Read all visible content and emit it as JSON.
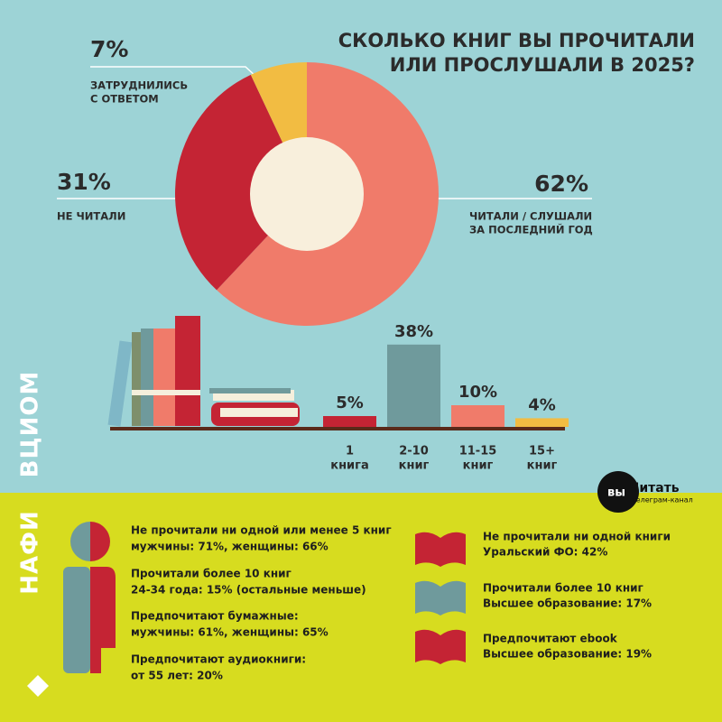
{
  "chart_data": [
    {
      "type": "pie",
      "donut": true,
      "title": [
        "СКОЛЬКО КНИГ ВЫ ПРОЧИТАЛИ",
        "ИЛИ ПРОСЛУШАЛИ В 2025?"
      ],
      "categories": [
        [
          "ЧИТАЛИ / СЛУШАЛИ",
          "ЗА ПОСЛЕДНИЙ ГОД"
        ],
        [
          "НЕ ЧИТАЛИ"
        ],
        [
          "ЗАТРУДНИЛИСЬ",
          "С ОТВЕТОМ"
        ]
      ],
      "values": [
        62,
        31,
        7
      ],
      "value_labels": [
        "62%",
        "31%",
        "7%"
      ],
      "colors": [
        "#f07b6a",
        "#c42434",
        "#f2bc42"
      ]
    },
    {
      "type": "bar",
      "categories": [
        [
          "1",
          "книга"
        ],
        [
          "2-10",
          "книг"
        ],
        [
          "11-15",
          "книг"
        ],
        [
          "15+",
          "книг"
        ]
      ],
      "values": [
        5,
        38,
        10,
        4
      ],
      "value_labels": [
        "5%",
        "38%",
        "10%",
        "4%"
      ],
      "colors": [
        "#c42434",
        "#6f9a9c",
        "#f07b6a",
        "#f2bc42"
      ]
    }
  ],
  "sources": {
    "top": "ВЦИОМ",
    "bottom": "НАФИ"
  },
  "logo": {
    "prefix": "вы",
    "name": "Читать",
    "subtitle": "телеграм-канал"
  },
  "nafi_left": [
    {
      "title": "Не прочитали ни одной или менее 5 книг",
      "detail": "мужчины: 71%, женщины: 66%"
    },
    {
      "title": "Прочитали более 10 книг",
      "detail": "24-34 года: 15% (остальные меньше)"
    },
    {
      "title": "Предпочитают бумажные:",
      "detail": "мужчины: 61%, женщины: 65%"
    },
    {
      "title": "Предпочитают аудиокниги:",
      "detail": "от 55 лет: 20%"
    }
  ],
  "nafi_right": [
    {
      "title": "Не прочитали ни одной книги",
      "detail": "Уральский ФО: 42%"
    },
    {
      "title": "Прочитали более 10 книг",
      "detail": "Высшее образование: 17%"
    },
    {
      "title": "Предпочитают ebook",
      "detail": "Высшее образование: 19%"
    }
  ]
}
